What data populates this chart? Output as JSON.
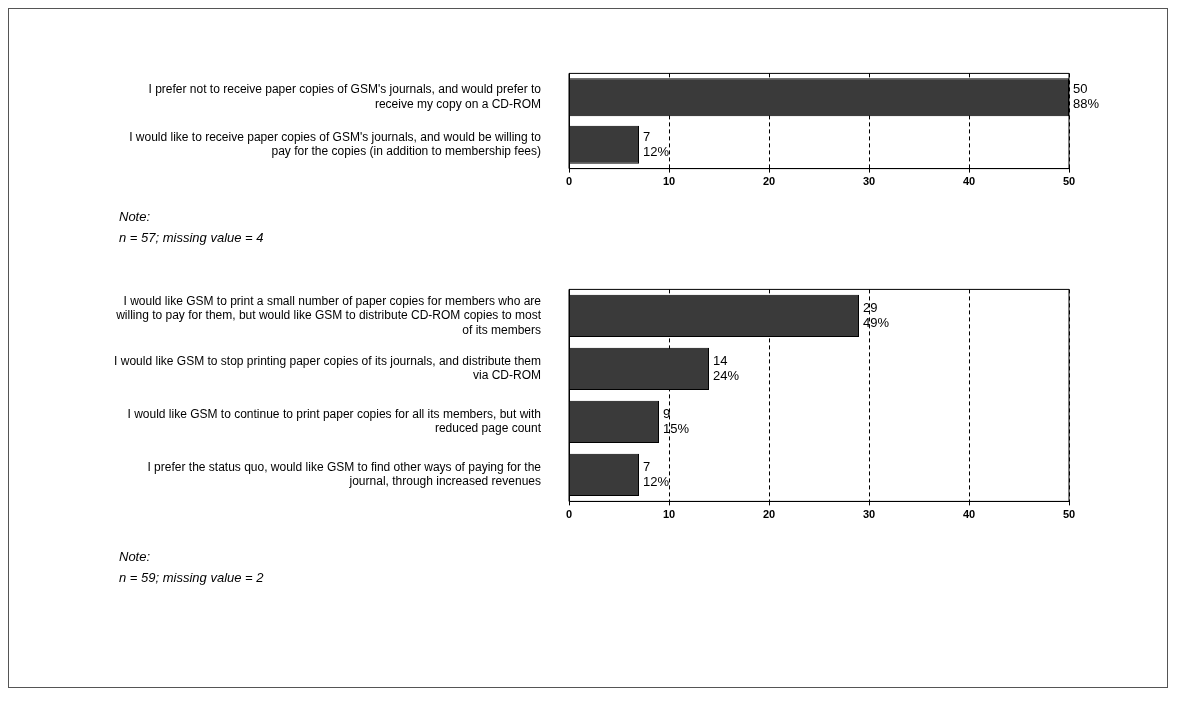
{
  "chart_data": [
    {
      "type": "bar",
      "orientation": "horizontal",
      "categories": [
        "I prefer not to receive paper copies of GSM's journals, and would prefer to receive my copy on a CD-ROM",
        "I would like to receive paper copies of GSM's journals, and would be willing to pay for the copies (in addition to membership fees)"
      ],
      "values": [
        50,
        7
      ],
      "color": "#3a3a3a",
      "xlim": [
        0,
        50
      ],
      "xticks": [
        0,
        10,
        20,
        30,
        40,
        50
      ],
      "grid": "x",
      "value_labels": [
        "50\n88%",
        "7\n12%"
      ],
      "annotations": [
        "Note:",
        "n = 57; missing value = 4"
      ]
    },
    {
      "type": "bar",
      "orientation": "horizontal",
      "categories": [
        "I would like GSM to print a small number of paper copies for members who are willing to pay for them, but would like GSM to distribute CD-ROM copies to most of its members",
        "I would like GSM to stop printing paper copies of its journals, and distribute them via CD-ROM",
        "I would like GSM to continue to print paper copies for all its members, but with reduced page count",
        "I prefer the status quo, would like GSM to find other ways of paying for the journal, through increased revenues"
      ],
      "values": [
        29,
        14,
        9,
        7
      ],
      "color": "#3a3a3a",
      "xlim": [
        0,
        50
      ],
      "xticks": [
        0,
        10,
        20,
        30,
        40,
        50
      ],
      "grid": "x",
      "value_labels": [
        "29\n49%",
        "14\n24%",
        "9\n15%",
        "7\n12%"
      ],
      "annotations": [
        "Note:",
        "n = 59; missing value = 2"
      ]
    }
  ]
}
